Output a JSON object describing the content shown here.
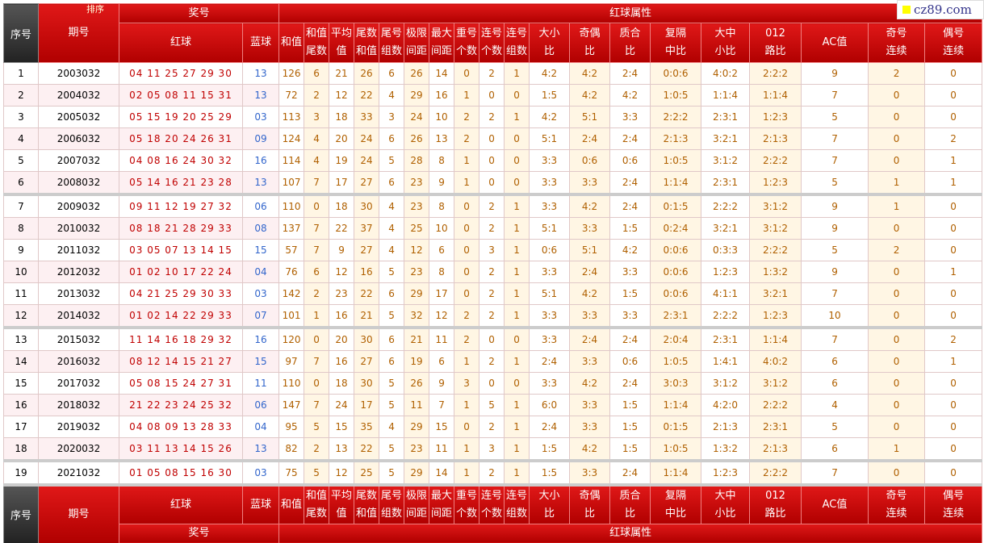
{
  "logo": "cz89.com",
  "header": {
    "serial": "序号",
    "issue": "期号",
    "sort": "排序",
    "prize": "奖号",
    "attrs_group": "红球属性",
    "red": "红球",
    "blue": "蓝球",
    "attrs": [
      "和值",
      "和值\n尾数",
      "平均\n值",
      "尾数\n和值",
      "尾号\n组数",
      "极限\n间距",
      "最大\n间距",
      "重号\n个数",
      "连号\n个数",
      "连号\n组数",
      "大小\n比",
      "奇偶\n比",
      "质合\n比",
      "复隔\n中比",
      "大中\n小比",
      "012\n路比",
      "AC值",
      "奇号\n连续",
      "偶号\n连续"
    ]
  },
  "footer": {
    "serial": "序号",
    "issue": "期号",
    "prize": "奖号",
    "attrs_group": "红球属性",
    "red": "红球",
    "blue": "蓝球",
    "attrs": [
      "和值",
      "和值\n尾数",
      "平均\n值",
      "尾数\n和值",
      "尾号\n组数",
      "极限\n间距",
      "最大\n间距",
      "重号\n个数",
      "连号\n个数",
      "连号\n组数",
      "大小\n比",
      "奇偶\n比",
      "质合\n比",
      "复隔\n中比",
      "大中\n小比",
      "012\n路比",
      "AC值",
      "奇号\n连续",
      "偶号\n连续"
    ]
  },
  "rows": [
    [
      "1",
      "2003032",
      "04 11 25 27 29 30",
      "13",
      "126",
      "6",
      "21",
      "26",
      "6",
      "26",
      "14",
      "0",
      "2",
      "1",
      "4:2",
      "4:2",
      "2:4",
      "0:0:6",
      "4:0:2",
      "2:2:2",
      "9",
      "2",
      "0"
    ],
    [
      "2",
      "2004032",
      "02 05 08 11 15 31",
      "13",
      "72",
      "2",
      "12",
      "22",
      "4",
      "29",
      "16",
      "1",
      "0",
      "0",
      "1:5",
      "4:2",
      "4:2",
      "1:0:5",
      "1:1:4",
      "1:1:4",
      "7",
      "0",
      "0"
    ],
    [
      "3",
      "2005032",
      "05 15 19 20 25 29",
      "03",
      "113",
      "3",
      "18",
      "33",
      "3",
      "24",
      "10",
      "2",
      "2",
      "1",
      "4:2",
      "5:1",
      "3:3",
      "2:2:2",
      "2:3:1",
      "1:2:3",
      "5",
      "0",
      "0"
    ],
    [
      "4",
      "2006032",
      "05 18 20 24 26 31",
      "09",
      "124",
      "4",
      "20",
      "24",
      "6",
      "26",
      "13",
      "2",
      "0",
      "0",
      "5:1",
      "2:4",
      "2:4",
      "2:1:3",
      "3:2:1",
      "2:1:3",
      "7",
      "0",
      "2"
    ],
    [
      "5",
      "2007032",
      "04 08 16 24 30 32",
      "16",
      "114",
      "4",
      "19",
      "24",
      "5",
      "28",
      "8",
      "1",
      "0",
      "0",
      "3:3",
      "0:6",
      "0:6",
      "1:0:5",
      "3:1:2",
      "2:2:2",
      "7",
      "0",
      "1"
    ],
    [
      "6",
      "2008032",
      "05 14 16 21 23 28",
      "13",
      "107",
      "7",
      "17",
      "27",
      "6",
      "23",
      "9",
      "1",
      "0",
      "0",
      "3:3",
      "3:3",
      "2:4",
      "1:1:4",
      "2:3:1",
      "1:2:3",
      "5",
      "1",
      "1"
    ],
    [
      "7",
      "2009032",
      "09 11 12 19 27 32",
      "06",
      "110",
      "0",
      "18",
      "30",
      "4",
      "23",
      "8",
      "0",
      "2",
      "1",
      "3:3",
      "4:2",
      "2:4",
      "0:1:5",
      "2:2:2",
      "3:1:2",
      "9",
      "1",
      "0"
    ],
    [
      "8",
      "2010032",
      "08 18 21 28 29 33",
      "08",
      "137",
      "7",
      "22",
      "37",
      "4",
      "25",
      "10",
      "0",
      "2",
      "1",
      "5:1",
      "3:3",
      "1:5",
      "0:2:4",
      "3:2:1",
      "3:1:2",
      "9",
      "0",
      "0"
    ],
    [
      "9",
      "2011032",
      "03 05 07 13 14 15",
      "15",
      "57",
      "7",
      "9",
      "27",
      "4",
      "12",
      "6",
      "0",
      "3",
      "1",
      "0:6",
      "5:1",
      "4:2",
      "0:0:6",
      "0:3:3",
      "2:2:2",
      "5",
      "2",
      "0"
    ],
    [
      "10",
      "2012032",
      "01 02 10 17 22 24",
      "04",
      "76",
      "6",
      "12",
      "16",
      "5",
      "23",
      "8",
      "0",
      "2",
      "1",
      "3:3",
      "2:4",
      "3:3",
      "0:0:6",
      "1:2:3",
      "1:3:2",
      "9",
      "0",
      "1"
    ],
    [
      "11",
      "2013032",
      "04 21 25 29 30 33",
      "03",
      "142",
      "2",
      "23",
      "22",
      "6",
      "29",
      "17",
      "0",
      "2",
      "1",
      "5:1",
      "4:2",
      "1:5",
      "0:0:6",
      "4:1:1",
      "3:2:1",
      "7",
      "0",
      "0"
    ],
    [
      "12",
      "2014032",
      "01 02 14 22 29 33",
      "07",
      "101",
      "1",
      "16",
      "21",
      "5",
      "32",
      "12",
      "2",
      "2",
      "1",
      "3:3",
      "3:3",
      "3:3",
      "2:3:1",
      "2:2:2",
      "1:2:3",
      "10",
      "0",
      "0"
    ],
    [
      "13",
      "2015032",
      "11 14 16 18 29 32",
      "16",
      "120",
      "0",
      "20",
      "30",
      "6",
      "21",
      "11",
      "2",
      "0",
      "0",
      "3:3",
      "2:4",
      "2:4",
      "2:0:4",
      "2:3:1",
      "1:1:4",
      "7",
      "0",
      "2"
    ],
    [
      "14",
      "2016032",
      "08 12 14 15 21 27",
      "15",
      "97",
      "7",
      "16",
      "27",
      "6",
      "19",
      "6",
      "1",
      "2",
      "1",
      "2:4",
      "3:3",
      "0:6",
      "1:0:5",
      "1:4:1",
      "4:0:2",
      "6",
      "0",
      "1"
    ],
    [
      "15",
      "2017032",
      "05 08 15 24 27 31",
      "11",
      "110",
      "0",
      "18",
      "30",
      "5",
      "26",
      "9",
      "3",
      "0",
      "0",
      "3:3",
      "4:2",
      "2:4",
      "3:0:3",
      "3:1:2",
      "3:1:2",
      "6",
      "0",
      "0"
    ],
    [
      "16",
      "2018032",
      "21 22 23 24 25 32",
      "06",
      "147",
      "7",
      "24",
      "17",
      "5",
      "11",
      "7",
      "1",
      "5",
      "1",
      "6:0",
      "3:3",
      "1:5",
      "1:1:4",
      "4:2:0",
      "2:2:2",
      "4",
      "0",
      "0"
    ],
    [
      "17",
      "2019032",
      "04 08 09 13 28 33",
      "04",
      "95",
      "5",
      "15",
      "35",
      "4",
      "29",
      "15",
      "0",
      "2",
      "1",
      "2:4",
      "3:3",
      "1:5",
      "0:1:5",
      "2:1:3",
      "2:3:1",
      "5",
      "0",
      "0"
    ],
    [
      "18",
      "2020032",
      "03 11 13 14 15 26",
      "13",
      "82",
      "2",
      "13",
      "22",
      "5",
      "23",
      "11",
      "1",
      "3",
      "1",
      "1:5",
      "4:2",
      "1:5",
      "1:0:5",
      "1:3:2",
      "2:1:3",
      "6",
      "1",
      "0"
    ],
    [
      "19",
      "2021032",
      "01 05 08 15 16 30",
      "03",
      "75",
      "5",
      "12",
      "25",
      "5",
      "29",
      "14",
      "1",
      "2",
      "1",
      "1:5",
      "3:3",
      "2:4",
      "1:1:4",
      "1:2:3",
      "2:2:2",
      "7",
      "0",
      "0"
    ]
  ]
}
